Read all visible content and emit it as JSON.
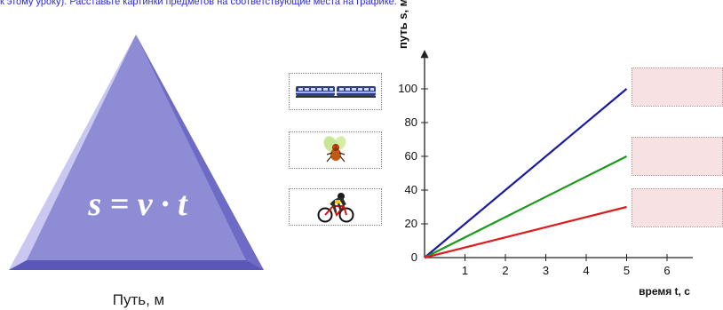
{
  "instruction": "к этому уроку). Расставьте картинки предметов на соответствующие места на графике.",
  "triangle": {
    "formula": "s = v · t",
    "caption": "Путь, м"
  },
  "cards": [
    {
      "name": "train",
      "icon": "train-icon"
    },
    {
      "name": "fly",
      "icon": "fly-icon"
    },
    {
      "name": "cyclist",
      "icon": "cyclist-icon"
    }
  ],
  "graph": {
    "y_axis_label": "путь s, м",
    "x_axis_label": "время t, с",
    "y_ticks": [
      "0",
      "20",
      "40",
      "60",
      "80",
      "100"
    ],
    "x_ticks": [
      "1",
      "2",
      "3",
      "4",
      "5",
      "6"
    ]
  },
  "chart_data": {
    "type": "line",
    "xlabel": "время t, с",
    "ylabel": "путь s, м",
    "xlim": [
      0,
      6
    ],
    "ylim": [
      0,
      100
    ],
    "series": [
      {
        "color": "#1a1aa0",
        "x": [
          0,
          5
        ],
        "y": [
          0,
          100
        ]
      },
      {
        "color": "#1a9a1a",
        "x": [
          0,
          5
        ],
        "y": [
          0,
          60
        ]
      },
      {
        "color": "#e01a1a",
        "x": [
          0,
          5
        ],
        "y": [
          0,
          30
        ]
      }
    ]
  },
  "colors": {
    "triangle_light": "#b6b3ea",
    "triangle_mid": "#8f8cd6",
    "triangle_dark": "#5a57b8",
    "drop_zone": "#f8e1e3",
    "link_text": "#2b2bd6"
  }
}
